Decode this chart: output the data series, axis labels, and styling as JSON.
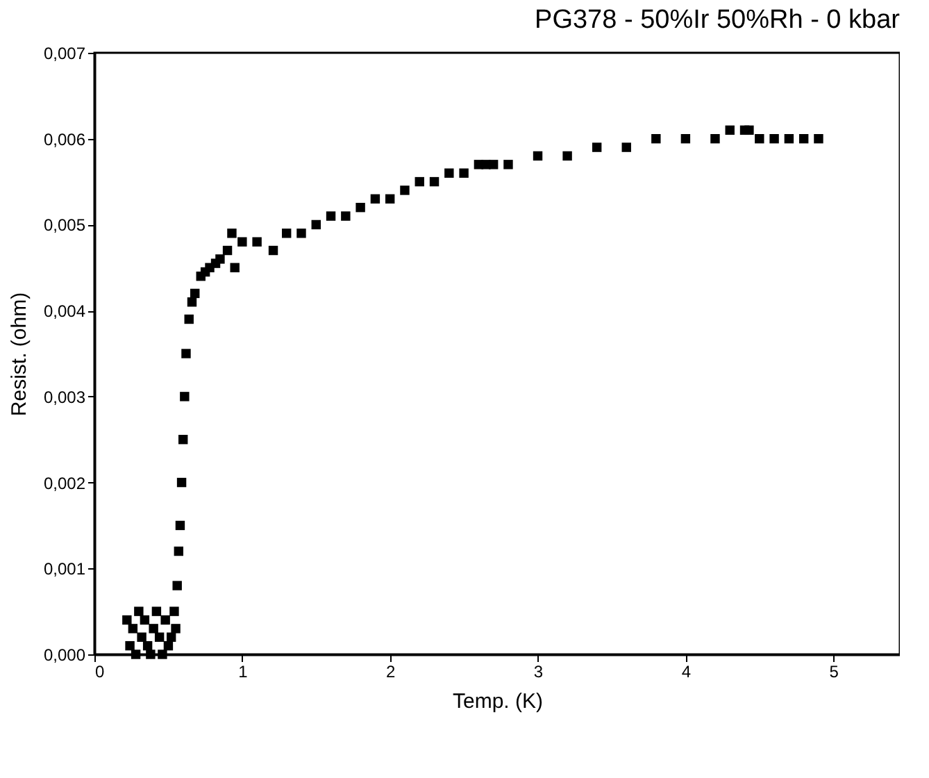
{
  "chart_data": {
    "type": "scatter",
    "title": "PG378 - 50%Ir 50%Rh - 0 kbar",
    "xlabel": "Temp. (K)",
    "ylabel": "Resist. (ohm)",
    "marker": "square",
    "grid": false,
    "legend": false,
    "xlim": [
      0,
      5.45
    ],
    "xticks": [
      0,
      1,
      2,
      3,
      4,
      5
    ],
    "ylim": [
      0,
      0.007
    ],
    "yticks": [
      {
        "value": 0,
        "label": "0,000"
      },
      {
        "value": 0.001,
        "label": "0,001"
      },
      {
        "value": 0.002,
        "label": "0,002"
      },
      {
        "value": 0.003,
        "label": "0,003"
      },
      {
        "value": 0.004,
        "label": "0,004"
      },
      {
        "value": 0.005,
        "label": "0,005"
      },
      {
        "value": 0.006,
        "label": "0,006"
      },
      {
        "value": 0.007,
        "label": "0,007"
      }
    ],
    "series": [
      {
        "color": "#000000",
        "x": [
          0.22,
          0.24,
          0.26,
          0.28,
          0.3,
          0.32,
          0.34,
          0.36,
          0.38,
          0.4,
          0.42,
          0.44,
          0.46,
          0.48,
          0.5,
          0.52,
          0.54,
          0.55,
          0.56,
          0.57,
          0.58,
          0.59,
          0.6,
          0.61,
          0.62,
          0.64,
          0.66,
          0.68,
          0.72,
          0.75,
          0.78,
          0.82,
          0.85,
          0.9,
          0.93,
          0.95,
          1.0,
          1.1,
          1.21,
          1.3,
          1.4,
          1.5,
          1.6,
          1.7,
          1.8,
          1.9,
          2.0,
          2.1,
          2.2,
          2.3,
          2.4,
          2.5,
          2.6,
          2.65,
          2.7,
          2.8,
          3.0,
          3.2,
          3.4,
          3.6,
          3.8,
          4.0,
          4.2,
          4.3,
          4.4,
          4.43,
          4.5,
          4.6,
          4.7,
          4.8,
          4.9
        ],
        "values": [
          0.0004,
          0.0001,
          0.0003,
          0.0,
          0.0005,
          0.0002,
          0.0004,
          0.0001,
          0.0,
          0.0003,
          0.0005,
          0.0002,
          0.0,
          0.0004,
          0.0001,
          0.0002,
          0.0005,
          0.0003,
          0.0008,
          0.0012,
          0.0015,
          0.002,
          0.0025,
          0.003,
          0.0035,
          0.0039,
          0.0041,
          0.0042,
          0.0044,
          0.00445,
          0.0045,
          0.00455,
          0.0046,
          0.0047,
          0.0049,
          0.0045,
          0.0048,
          0.0048,
          0.0047,
          0.0049,
          0.0049,
          0.005,
          0.0051,
          0.0051,
          0.0052,
          0.0053,
          0.0053,
          0.0054,
          0.0055,
          0.0055,
          0.0056,
          0.0056,
          0.0057,
          0.0057,
          0.0057,
          0.0057,
          0.0058,
          0.0058,
          0.0059,
          0.0059,
          0.006,
          0.006,
          0.006,
          0.0061,
          0.0061,
          0.0061,
          0.006,
          0.006,
          0.006,
          0.006,
          0.006
        ]
      }
    ]
  }
}
